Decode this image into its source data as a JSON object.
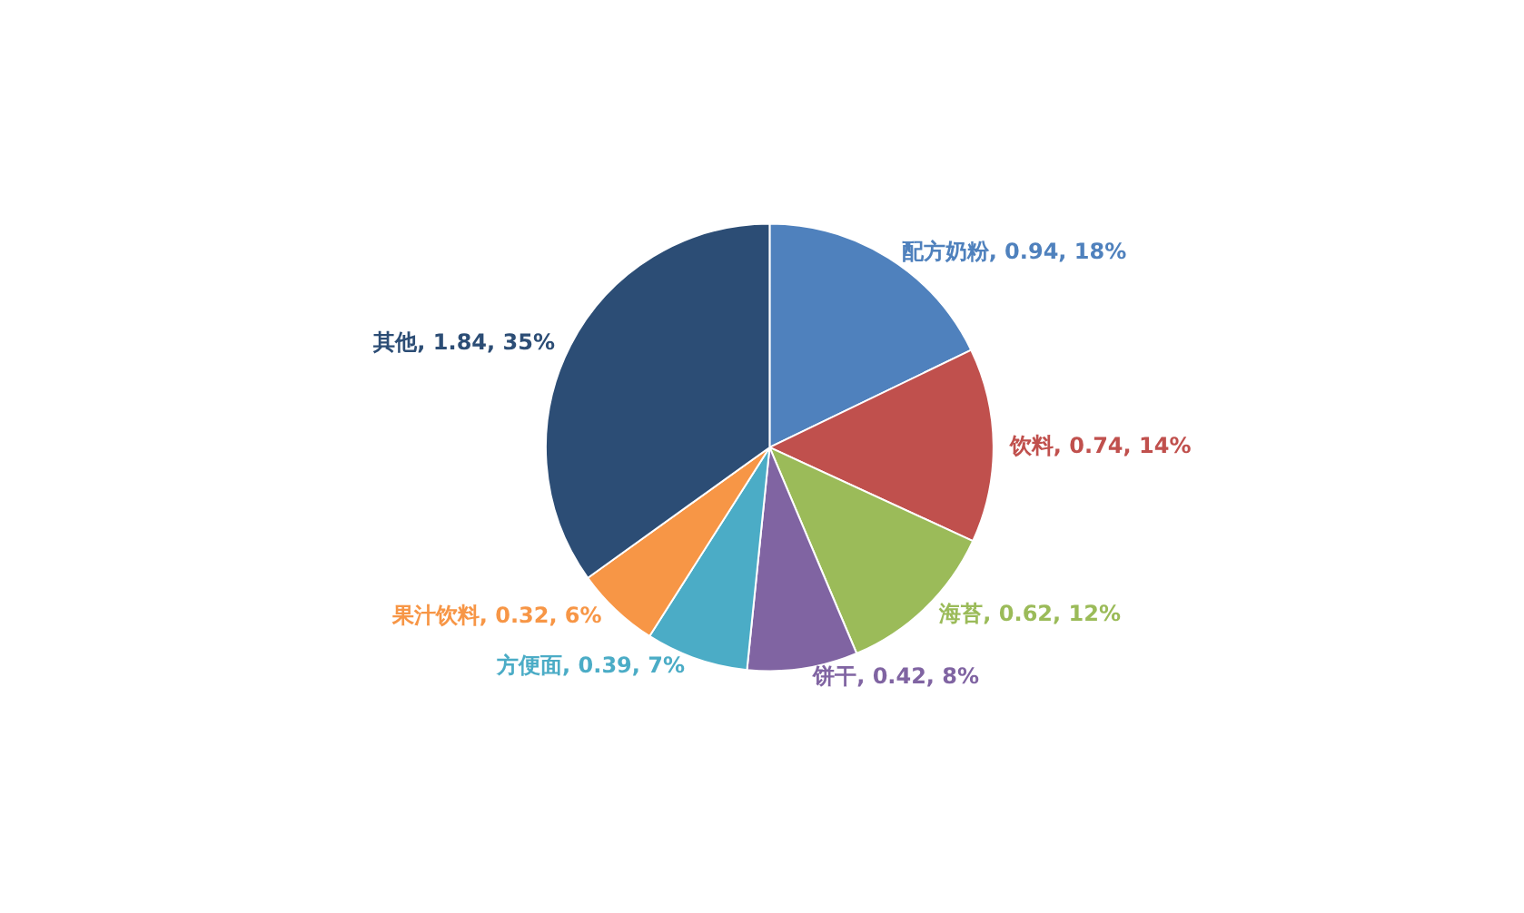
{
  "chart_data": {
    "type": "pie",
    "categories": [
      "配方奶粉",
      "饮料",
      "海苔",
      "饼干",
      "方便面",
      "果汁饮料",
      "其他"
    ],
    "values": [
      0.94,
      0.74,
      0.62,
      0.42,
      0.39,
      0.32,
      1.84
    ],
    "value_labels": [
      "0.94, 18%",
      "0.74, 14%",
      "0.62, 12%",
      "0.42, 8%",
      "0.39, 7%",
      "0.32, 6%",
      "1.84, 35%"
    ],
    "colors": [
      "#4f81bd",
      "#c0504d",
      "#9bbb59",
      "#8064a2",
      "#4bacc6",
      "#f79646",
      "#2c4d75"
    ],
    "legend": false
  }
}
